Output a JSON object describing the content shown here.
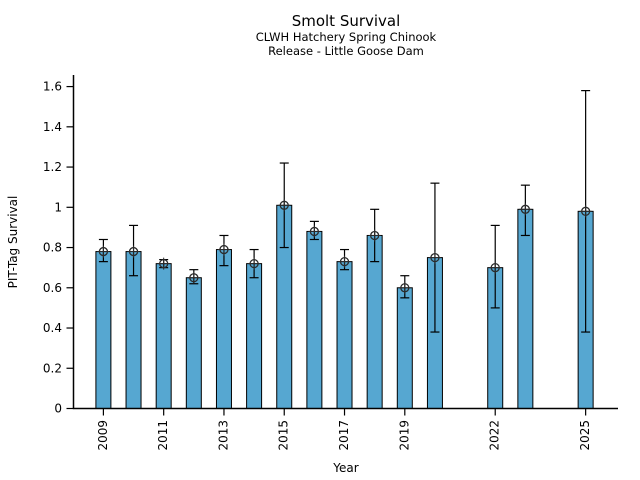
{
  "chart_data": {
    "type": "bar",
    "title": "Smolt Survival",
    "subtitle": [
      "CLWH Hatchery Spring Chinook",
      "Release - Little Goose Dam"
    ],
    "xlabel": "Year",
    "ylabel": "PIT-Tag Survival",
    "grid": false,
    "legend": null,
    "ylim": [
      0,
      1.66
    ],
    "yticks": [
      0,
      0.2,
      0.4,
      0.6,
      0.8,
      1.0,
      1.2,
      1.4,
      1.6
    ],
    "ytick_labels": [
      "0",
      "0.2",
      "0.4",
      "0.6",
      "0.8",
      "1",
      "1.2",
      "1.4",
      "1.6"
    ],
    "xticks": [
      2009,
      2011,
      2013,
      2015,
      2017,
      2019,
      2022,
      2025
    ],
    "bar_color": "#56a7d1",
    "bar_edge_color": "#000000",
    "error_bar_color": "#000000",
    "marker": "circle-plus",
    "marker_color": "#2b2b2b",
    "points": [
      {
        "year": 2009,
        "value": 0.78,
        "ci_low": 0.73,
        "ci_high": 0.84
      },
      {
        "year": 2010,
        "value": 0.78,
        "ci_low": 0.66,
        "ci_high": 0.91
      },
      {
        "year": 2011,
        "value": 0.72,
        "ci_low": 0.7,
        "ci_high": 0.74
      },
      {
        "year": 2012,
        "value": 0.65,
        "ci_low": 0.62,
        "ci_high": 0.69
      },
      {
        "year": 2013,
        "value": 0.79,
        "ci_low": 0.71,
        "ci_high": 0.86
      },
      {
        "year": 2014,
        "value": 0.72,
        "ci_low": 0.65,
        "ci_high": 0.79
      },
      {
        "year": 2015,
        "value": 1.01,
        "ci_low": 0.8,
        "ci_high": 1.22
      },
      {
        "year": 2016,
        "value": 0.88,
        "ci_low": 0.84,
        "ci_high": 0.93
      },
      {
        "year": 2017,
        "value": 0.73,
        "ci_low": 0.69,
        "ci_high": 0.79
      },
      {
        "year": 2018,
        "value": 0.86,
        "ci_low": 0.73,
        "ci_high": 0.99
      },
      {
        "year": 2019,
        "value": 0.6,
        "ci_low": 0.55,
        "ci_high": 0.66
      },
      {
        "year": 2020,
        "value": 0.75,
        "ci_low": 0.38,
        "ci_high": 1.12
      },
      {
        "year": 2022,
        "value": 0.7,
        "ci_low": 0.5,
        "ci_high": 0.91
      },
      {
        "year": 2023,
        "value": 0.99,
        "ci_low": 0.86,
        "ci_high": 1.11
      },
      {
        "year": 2025,
        "value": 0.98,
        "ci_low": 0.38,
        "ci_high": 1.58
      }
    ]
  }
}
